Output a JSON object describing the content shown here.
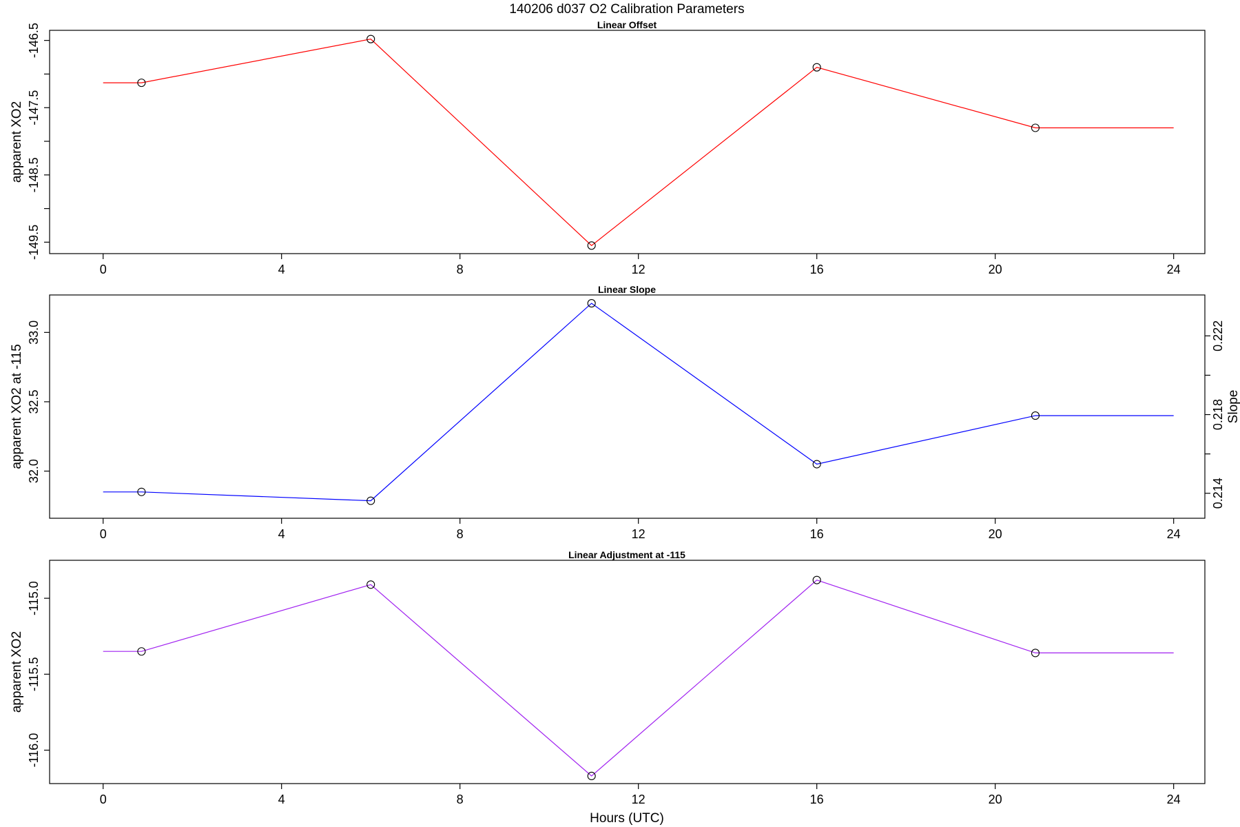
{
  "figure": {
    "title": "140206   d037   O2 Calibration Parameters",
    "xlabel": "Hours (UTC)"
  },
  "chart_data": [
    {
      "type": "line",
      "title": "Linear Offset",
      "ylabel": "apparent XO2",
      "xlim": [
        -1.2,
        24.7
      ],
      "ylim": [
        -149.67,
        -146.35
      ],
      "xticks": [
        0,
        4,
        8,
        12,
        16,
        20,
        24
      ],
      "yticks": [
        -146.5,
        -147,
        -147.5,
        -148,
        -148.5,
        -149,
        -149.5
      ],
      "ytick_labels": [
        "-146.5",
        "",
        "-147.5",
        "",
        "-148.5",
        "",
        "-149.5"
      ],
      "color": "#ff0000",
      "x": [
        0.86,
        6.0,
        10.95,
        16.0,
        20.9
      ],
      "y": [
        -147.13,
        -146.48,
        -149.55,
        -146.9,
        -147.8
      ],
      "line_extends_to": [
        0.0,
        24.0
      ]
    },
    {
      "type": "line",
      "title": "Linear Slope",
      "ylabel": "apparent XO2 at -115",
      "y2label": "Slope",
      "xlim": [
        -1.2,
        24.7
      ],
      "ylim": [
        31.66,
        33.27
      ],
      "xticks": [
        0,
        4,
        8,
        12,
        16,
        20,
        24
      ],
      "yticks": [
        32.0,
        32.5,
        33.0
      ],
      "ytick_labels": [
        "32.0",
        "32.5",
        "33.0"
      ],
      "y2ticks": [
        0.214,
        0.216,
        0.218,
        0.22,
        0.222
      ],
      "y2tick_labels": [
        "0.214",
        "",
        "0.218",
        "",
        "0.222"
      ],
      "y2lim": [
        0.21273,
        0.22408
      ],
      "color": "#0000ff",
      "x": [
        0.86,
        6.0,
        10.95,
        16.0,
        20.9
      ],
      "y": [
        31.85,
        31.786,
        33.21,
        32.05,
        32.4
      ],
      "line_extends_to": [
        0.0,
        24.0
      ]
    },
    {
      "type": "line",
      "title": "Linear Adjustment at -115",
      "ylabel": "apparent XO2",
      "xlim": [
        -1.2,
        24.7
      ],
      "ylim": [
        -116.22,
        -114.75
      ],
      "xticks": [
        0,
        4,
        8,
        12,
        16,
        20,
        24
      ],
      "yticks": [
        -115.0,
        -115.5,
        -116.0
      ],
      "ytick_labels": [
        "-115.0",
        "-115.5",
        "-116.0"
      ],
      "color": "#a020f0",
      "x": [
        0.86,
        6.0,
        10.95,
        16.0,
        20.9
      ],
      "y": [
        -115.35,
        -114.91,
        -116.17,
        -114.88,
        -115.36
      ],
      "line_extends_to": [
        0.0,
        24.0
      ]
    }
  ]
}
